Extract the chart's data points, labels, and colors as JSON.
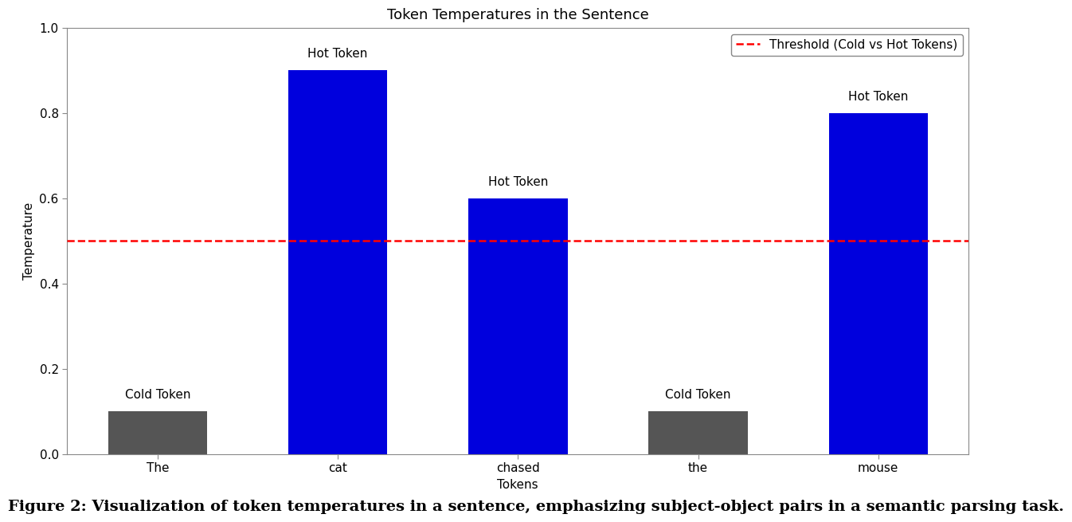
{
  "tokens": [
    "The",
    "cat",
    "chased",
    "the",
    "mouse"
  ],
  "temperatures": [
    0.1,
    0.9,
    0.6,
    0.1,
    0.8
  ],
  "bar_colors": [
    "#555555",
    "#0000dd",
    "#0000dd",
    "#555555",
    "#0000dd"
  ],
  "labels": [
    "Cold Token",
    "Hot Token",
    "Hot Token",
    "Cold Token",
    "Hot Token"
  ],
  "threshold": 0.5,
  "threshold_color": "#ff0000",
  "threshold_label": "Threshold (Cold vs Hot Tokens)",
  "title": "Token Temperatures in the Sentence",
  "xlabel": "Tokens",
  "ylabel": "Temperature",
  "ylim": [
    0.0,
    1.0
  ],
  "title_fontsize": 13,
  "label_fontsize": 11,
  "tick_fontsize": 11,
  "annotation_fontsize": 11,
  "caption": "Figure 2: Visualization of token temperatures in a sentence, emphasizing subject-object pairs in a semantic parsing task.",
  "caption_fontsize": 14,
  "background_color": "#ffffff",
  "bar_width": 0.55
}
